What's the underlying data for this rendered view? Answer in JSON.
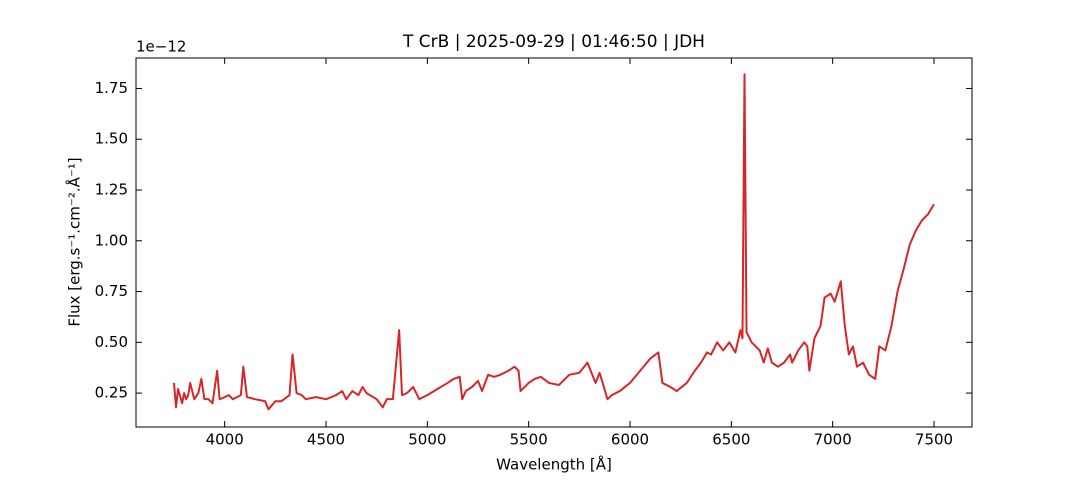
{
  "chart_data": {
    "type": "line",
    "title": "T CrB | 2025-09-29 | 01:46:50 | JDH",
    "x_label": "Wavelength [Å]",
    "y_label": "Flux [erg.s⁻¹.cm⁻².Å⁻¹]",
    "y_offset_label": "1e−12",
    "xlim": [
      3562.5,
      7687.5
    ],
    "ylim": [
      0.083,
      1.9
    ],
    "xticks": [
      4000,
      4500,
      5000,
      5500,
      6000,
      6500,
      7000,
      7500
    ],
    "yticks": [
      0.25,
      {
        "value": 0.5,
        "label": "0.50"
      },
      0.75,
      {
        "value": 1.0,
        "label": "1.00"
      },
      1.25,
      {
        "value": 1.5,
        "label": "1.50"
      },
      1.75
    ],
    "grid": false,
    "series": [
      {
        "name": "T CrB",
        "color": "#d62728",
        "x": [
          3750,
          3760,
          3770,
          3790,
          3800,
          3810,
          3820,
          3830,
          3850,
          3870,
          3885,
          3900,
          3920,
          3940,
          3963,
          3975,
          4000,
          4020,
          4040,
          4060,
          4080,
          4092,
          4110,
          4150,
          4200,
          4216,
          4250,
          4280,
          4320,
          4335,
          4355,
          4380,
          4400,
          4450,
          4500,
          4550,
          4580,
          4600,
          4630,
          4660,
          4680,
          4700,
          4750,
          4780,
          4800,
          4830,
          4861,
          4875,
          4900,
          4930,
          4960,
          5000,
          5050,
          5100,
          5130,
          5160,
          5172,
          5190,
          5220,
          5250,
          5270,
          5300,
          5330,
          5360,
          5400,
          5430,
          5450,
          5460,
          5500,
          5530,
          5560,
          5600,
          5650,
          5700,
          5750,
          5790,
          5810,
          5830,
          5850,
          5889,
          5910,
          5950,
          6000,
          6050,
          6100,
          6140,
          6160,
          6200,
          6230,
          6280,
          6320,
          6350,
          6380,
          6400,
          6430,
          6460,
          6490,
          6520,
          6545,
          6555,
          6565,
          6575,
          6600,
          6640,
          6660,
          6680,
          6700,
          6730,
          6760,
          6790,
          6800,
          6830,
          6860,
          6875,
          6885,
          6910,
          6940,
          6960,
          6990,
          7010,
          7040,
          7060,
          7080,
          7100,
          7120,
          7150,
          7180,
          7210,
          7230,
          7260,
          7290,
          7320,
          7350,
          7380,
          7410,
          7440,
          7470,
          7500
        ],
        "values": [
          0.3,
          0.18,
          0.27,
          0.2,
          0.25,
          0.22,
          0.24,
          0.3,
          0.22,
          0.25,
          0.32,
          0.22,
          0.22,
          0.2,
          0.36,
          0.22,
          0.23,
          0.24,
          0.22,
          0.23,
          0.24,
          0.38,
          0.23,
          0.22,
          0.21,
          0.17,
          0.21,
          0.21,
          0.24,
          0.44,
          0.25,
          0.24,
          0.22,
          0.23,
          0.22,
          0.24,
          0.26,
          0.22,
          0.26,
          0.24,
          0.28,
          0.25,
          0.22,
          0.18,
          0.22,
          0.22,
          0.56,
          0.24,
          0.25,
          0.28,
          0.22,
          0.24,
          0.27,
          0.3,
          0.32,
          0.33,
          0.22,
          0.26,
          0.28,
          0.31,
          0.26,
          0.34,
          0.33,
          0.34,
          0.36,
          0.38,
          0.36,
          0.26,
          0.3,
          0.32,
          0.33,
          0.3,
          0.29,
          0.34,
          0.35,
          0.4,
          0.35,
          0.3,
          0.35,
          0.22,
          0.24,
          0.26,
          0.3,
          0.36,
          0.42,
          0.45,
          0.3,
          0.28,
          0.26,
          0.3,
          0.36,
          0.4,
          0.45,
          0.44,
          0.5,
          0.46,
          0.5,
          0.45,
          0.56,
          0.52,
          1.82,
          0.55,
          0.5,
          0.46,
          0.4,
          0.47,
          0.4,
          0.38,
          0.4,
          0.44,
          0.4,
          0.46,
          0.5,
          0.48,
          0.36,
          0.52,
          0.58,
          0.72,
          0.74,
          0.7,
          0.8,
          0.58,
          0.44,
          0.48,
          0.38,
          0.4,
          0.34,
          0.32,
          0.48,
          0.46,
          0.58,
          0.75,
          0.86,
          0.98,
          1.05,
          1.1,
          1.13,
          1.18
        ]
      }
    ]
  }
}
